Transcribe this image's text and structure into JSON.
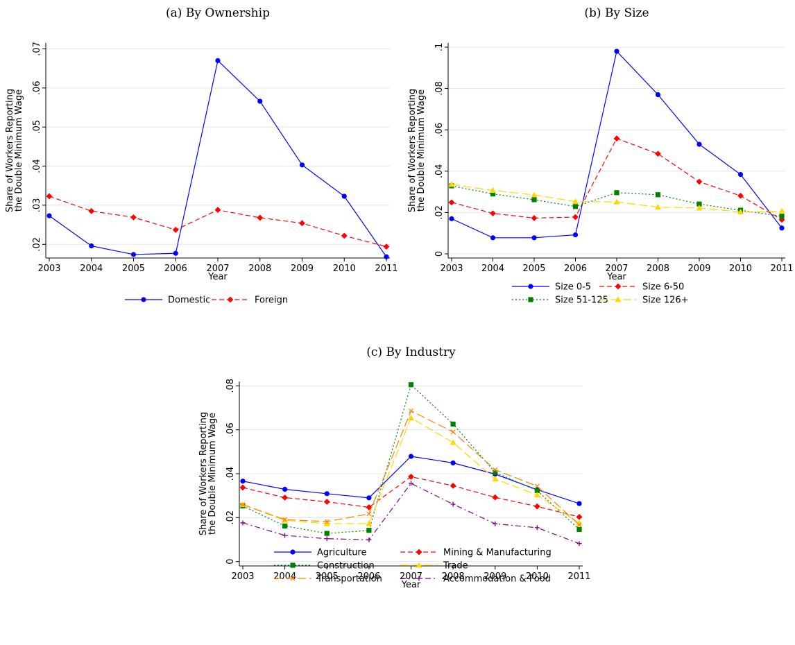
{
  "chart_data": [
    {
      "type": "line",
      "title": "(a) By Ownership",
      "xlabel": "Year",
      "ylabel_lines": [
        "Share of Workers Reporting",
        "the Double Minimum Wage"
      ],
      "x": [
        2003,
        2004,
        2005,
        2006,
        2007,
        2008,
        2009,
        2010,
        2011
      ],
      "x_tick_labels": [
        "2003",
        "2004",
        "2005",
        "2006",
        "2007",
        "2008",
        "2009",
        "2010",
        "2011"
      ],
      "ylim": [
        0.0165,
        0.0715
      ],
      "y_ticks": [
        0.02,
        0.03,
        0.04,
        0.05,
        0.06,
        0.07
      ],
      "y_tick_labels": [
        ".02",
        ".03",
        ".04",
        ".05",
        ".06",
        ".07"
      ],
      "grid": true,
      "legend_position": "bottom",
      "legend_columns": 2,
      "series": [
        {
          "name": "Domestic",
          "color": "#0000ff",
          "dash": "solid",
          "marker": "circle",
          "values": [
            0.0273,
            0.0196,
            0.0174,
            0.0177,
            0.067,
            0.0566,
            0.0403,
            0.0323,
            0.0168
          ]
        },
        {
          "name": "Foreign",
          "color": "#ff0000",
          "dash": "dashed",
          "marker": "diamond",
          "values": [
            0.0323,
            0.0285,
            0.0269,
            0.0237,
            0.0288,
            0.0268,
            0.0254,
            0.0222,
            0.0194
          ]
        }
      ]
    },
    {
      "type": "line",
      "title": "(b) By Size",
      "xlabel": "Year",
      "ylabel_lines": [
        "Share of Workers Reporting",
        "the Double Minimum Wage"
      ],
      "x": [
        2003,
        2004,
        2005,
        2006,
        2007,
        2008,
        2009,
        2010,
        2011
      ],
      "x_tick_labels": [
        "2003",
        "2004",
        "2005",
        "2006",
        "2007",
        "2008",
        "2009",
        "2010",
        "2011"
      ],
      "ylim": [
        -0.002,
        0.102
      ],
      "y_ticks": [
        0,
        0.02,
        0.04,
        0.06,
        0.08,
        0.1
      ],
      "y_tick_labels": [
        "0",
        ".02",
        ".04",
        ".06",
        ".08",
        ".1"
      ],
      "grid": true,
      "legend_position": "bottom",
      "legend_columns": 2,
      "series": [
        {
          "name": "Size 0-5",
          "color": "#0000ff",
          "dash": "solid",
          "marker": "circle",
          "values": [
            0.017,
            0.0078,
            0.0078,
            0.0092,
            0.098,
            0.077,
            0.053,
            0.0384,
            0.0125
          ]
        },
        {
          "name": "Size 6-50",
          "color": "#ff0000",
          "dash": "dashed",
          "marker": "diamond",
          "values": [
            0.0249,
            0.0196,
            0.0173,
            0.0178,
            0.0558,
            0.0484,
            0.0349,
            0.0281,
            0.0165
          ]
        },
        {
          "name": "Size 51-125",
          "color": "#008000",
          "dash": "dotted",
          "marker": "square",
          "values": [
            0.0329,
            0.029,
            0.0262,
            0.0229,
            0.0296,
            0.0286,
            0.0241,
            0.0211,
            0.0182
          ]
        },
        {
          "name": "Size 126+",
          "color": "#ffd700",
          "dash": "longdash",
          "marker": "triangle",
          "values": [
            0.0336,
            0.0307,
            0.0285,
            0.0253,
            0.0251,
            0.0226,
            0.0222,
            0.0203,
            0.0207
          ]
        }
      ]
    },
    {
      "type": "line",
      "title": "(c) By Industry",
      "xlabel": "Year",
      "ylabel_lines": [
        "Share of Workers Reporting",
        "the Double Minimum Wage"
      ],
      "x": [
        2003,
        2004,
        2005,
        2006,
        2007,
        2008,
        2009,
        2010,
        2011
      ],
      "x_tick_labels": [
        "2003",
        "2004",
        "2005",
        "2006",
        "2007",
        "2008",
        "2009",
        "2010",
        "2011"
      ],
      "ylim": [
        -0.002,
        0.082
      ],
      "y_ticks": [
        0,
        0.02,
        0.04,
        0.06,
        0.08
      ],
      "y_tick_labels": [
        "0",
        ".02",
        ".04",
        ".06",
        ".08"
      ],
      "grid": true,
      "legend_position": "bottom",
      "legend_columns": 2,
      "series": [
        {
          "name": "Agriculture",
          "color": "#0000ff",
          "dash": "solid",
          "marker": "circle",
          "values": [
            0.0366,
            0.0329,
            0.0309,
            0.029,
            0.0479,
            0.0449,
            0.0398,
            0.0327,
            0.0264
          ]
        },
        {
          "name": "Mining & Manufacturing",
          "color": "#ff0000",
          "dash": "dashed",
          "marker": "diamond",
          "values": [
            0.0337,
            0.0291,
            0.0272,
            0.0247,
            0.0386,
            0.0345,
            0.0292,
            0.0251,
            0.0203
          ]
        },
        {
          "name": "Construction",
          "color": "#008000",
          "dash": "dotted",
          "marker": "square",
          "values": [
            0.0253,
            0.0162,
            0.0128,
            0.0142,
            0.0805,
            0.0626,
            0.0406,
            0.0323,
            0.0146
          ]
        },
        {
          "name": "Trade",
          "color": "#ffd700",
          "dash": "longdash",
          "marker": "triangle",
          "values": [
            0.0259,
            0.0188,
            0.0172,
            0.0173,
            0.0654,
            0.0542,
            0.0376,
            0.0303,
            0.0175
          ]
        },
        {
          "name": "Transportation",
          "color": "#ff7f00",
          "dash": "longdash",
          "marker": "cross",
          "values": [
            0.0259,
            0.0191,
            0.0182,
            0.0217,
            0.0686,
            0.059,
            0.0418,
            0.0343,
            0.0167
          ]
        },
        {
          "name": "Accommodation & Food",
          "color": "#800080",
          "dash": "dashdot",
          "marker": "plus",
          "values": [
            0.0176,
            0.0119,
            0.0104,
            0.0099,
            0.0356,
            0.0261,
            0.0172,
            0.0154,
            0.0082
          ]
        }
      ]
    }
  ]
}
